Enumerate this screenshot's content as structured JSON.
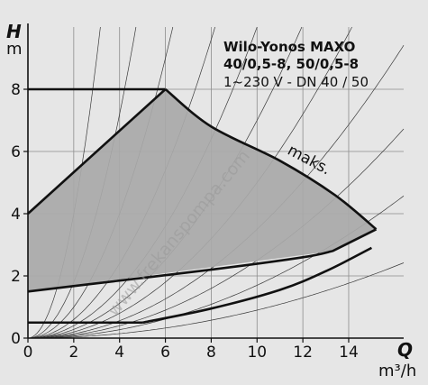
{
  "chart_data": {
    "type": "line",
    "title_lines": [
      "Wilo-Yonos MAXO",
      "40/0,5-8, 50/0,5-8",
      "1~230 V - DN 40 / 50"
    ],
    "y_axis": {
      "symbol": "H",
      "unit": "m",
      "range": [
        0,
        10
      ],
      "ticks": [
        "0",
        "2",
        "4",
        "6",
        "8"
      ]
    },
    "x_axis": {
      "symbol": "Q",
      "unit": "m³/h",
      "range": [
        0,
        16.4
      ],
      "ticks": [
        "0",
        "2",
        "4",
        "6",
        "8",
        "10",
        "12",
        "14"
      ]
    },
    "grid": true,
    "operating_area": {
      "fill": "#a9a9a9",
      "boundary": [
        [
          0,
          4
        ],
        [
          6,
          8
        ],
        [
          8,
          6.8
        ],
        [
          11,
          5.7
        ],
        [
          13.4,
          4.6
        ],
        [
          15.2,
          3.5
        ],
        [
          13.3,
          2.8
        ],
        [
          0,
          1.5
        ]
      ]
    },
    "curves": [
      {
        "name": "max_label_curve",
        "label": "maks.",
        "points": [
          [
            0,
            8
          ],
          [
            6,
            8
          ],
          [
            8,
            6.8
          ],
          [
            11,
            5.7
          ],
          [
            13.4,
            4.6
          ],
          [
            15.2,
            3.5
          ]
        ]
      },
      {
        "name": "lower_curve",
        "points": [
          [
            0,
            1.5
          ],
          [
            4,
            1.85
          ],
          [
            8,
            2.2
          ],
          [
            12,
            2.6
          ],
          [
            13.3,
            2.8
          ]
        ]
      },
      {
        "name": "min_curve",
        "points": [
          [
            0,
            0.5
          ],
          [
            5,
            0.5
          ],
          [
            8,
            0.95
          ],
          [
            11,
            1.55
          ],
          [
            13,
            2.15
          ],
          [
            15,
            2.9
          ]
        ]
      }
    ],
    "system_curves_k": [
      1.0,
      0.45,
      0.25,
      0.15,
      0.1,
      0.07,
      0.05,
      0.035,
      0.025,
      0.017,
      0.009
    ],
    "watermark": "www.frekanspompa.com",
    "colors": {
      "background": "#e6e6e6",
      "area": "#a9a9a9",
      "line": "#111111",
      "grid": "#8c8c8c"
    }
  }
}
